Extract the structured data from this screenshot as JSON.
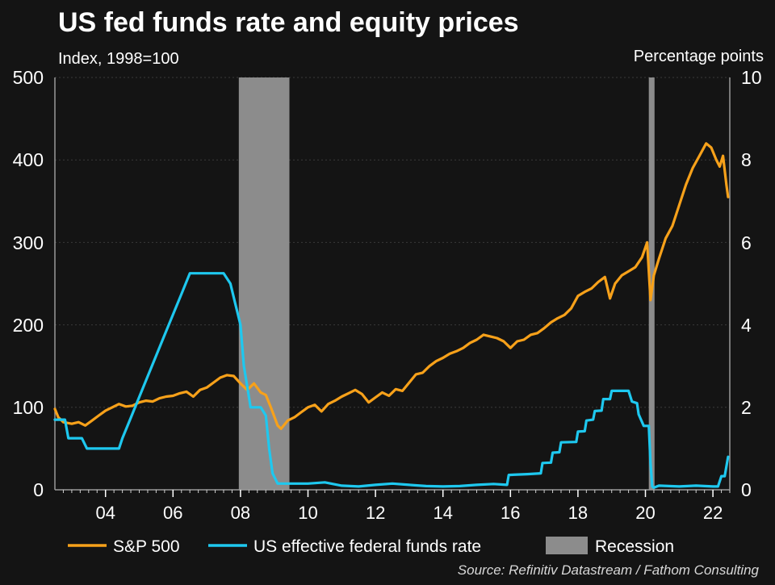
{
  "chart_data": {
    "type": "line",
    "title": "US fed funds rate and equity prices",
    "ylabel_left": "Index, 1998=100",
    "ylabel_right": "Percentage points",
    "ylim_left": [
      0,
      500
    ],
    "ylim_right": [
      0,
      10
    ],
    "xlim": [
      2002.5,
      2022.5
    ],
    "yticks_left": [
      "0",
      "100",
      "200",
      "300",
      "400",
      "500"
    ],
    "yticks_right": [
      "0",
      "2",
      "4",
      "6",
      "8",
      "10"
    ],
    "xticks": [
      {
        "label": "04",
        "value": 2004
      },
      {
        "label": "06",
        "value": 2006
      },
      {
        "label": "08",
        "value": 2008
      },
      {
        "label": "10",
        "value": 2010
      },
      {
        "label": "12",
        "value": 2012
      },
      {
        "label": "14",
        "value": 2014
      },
      {
        "label": "16",
        "value": 2016
      },
      {
        "label": "18",
        "value": 2018
      },
      {
        "label": "20",
        "value": 2020
      },
      {
        "label": "22",
        "value": 2022
      }
    ],
    "recessions": [
      {
        "start": 2007.95,
        "end": 2009.45
      },
      {
        "start": 2020.1,
        "end": 2020.27
      }
    ],
    "series": [
      {
        "name": "S&P 500",
        "axis": "left",
        "color": "#f7a11a",
        "x": [
          2002.5,
          2002.6,
          2002.75,
          2003.0,
          2003.2,
          2003.4,
          2003.6,
          2003.8,
          2004.0,
          2004.2,
          2004.4,
          2004.6,
          2004.8,
          2005.0,
          2005.2,
          2005.4,
          2005.6,
          2005.8,
          2006.0,
          2006.2,
          2006.4,
          2006.6,
          2006.8,
          2007.0,
          2007.2,
          2007.4,
          2007.6,
          2007.8,
          2008.0,
          2008.2,
          2008.4,
          2008.6,
          2008.75,
          2008.9,
          2009.1,
          2009.2,
          2009.4,
          2009.6,
          2009.8,
          2010.0,
          2010.2,
          2010.4,
          2010.6,
          2010.8,
          2011.0,
          2011.2,
          2011.4,
          2011.6,
          2011.8,
          2012.0,
          2012.2,
          2012.4,
          2012.6,
          2012.8,
          2013.0,
          2013.2,
          2013.4,
          2013.6,
          2013.8,
          2014.0,
          2014.2,
          2014.4,
          2014.6,
          2014.8,
          2015.0,
          2015.2,
          2015.4,
          2015.6,
          2015.8,
          2016.0,
          2016.2,
          2016.4,
          2016.6,
          2016.8,
          2017.0,
          2017.2,
          2017.4,
          2017.6,
          2017.8,
          2018.0,
          2018.2,
          2018.4,
          2018.6,
          2018.8,
          2018.95,
          2019.1,
          2019.3,
          2019.5,
          2019.7,
          2019.9,
          2020.05,
          2020.15,
          2020.25,
          2020.4,
          2020.6,
          2020.8,
          2021.0,
          2021.2,
          2021.4,
          2021.6,
          2021.8,
          2021.95,
          2022.1,
          2022.2,
          2022.3,
          2022.4,
          2022.45
        ],
        "values": [
          98,
          88,
          82,
          80,
          82,
          78,
          84,
          90,
          96,
          100,
          104,
          101,
          102,
          106,
          108,
          107,
          111,
          113,
          114,
          117,
          119,
          113,
          121,
          124,
          130,
          136,
          139,
          138,
          129,
          121,
          129,
          118,
          115,
          100,
          78,
          74,
          84,
          88,
          94,
          100,
          103,
          95,
          104,
          108,
          113,
          117,
          121,
          116,
          106,
          112,
          118,
          114,
          122,
          120,
          130,
          140,
          142,
          150,
          156,
          160,
          165,
          168,
          172,
          178,
          182,
          188,
          186,
          184,
          180,
          172,
          180,
          182,
          188,
          190,
          196,
          203,
          208,
          212,
          220,
          235,
          240,
          244,
          252,
          258,
          232,
          250,
          260,
          265,
          270,
          282,
          300,
          230,
          260,
          280,
          305,
          320,
          345,
          370,
          390,
          405,
          420,
          415,
          400,
          392,
          405,
          370,
          355
        ]
      },
      {
        "name": "US effective federal funds rate",
        "axis": "right",
        "color": "#1ec8ef",
        "x": [
          2002.5,
          2002.8,
          2002.9,
          2003.0,
          2003.3,
          2003.45,
          2003.5,
          2003.8,
          2004.0,
          2004.4,
          2004.5,
          2004.75,
          2005.0,
          2005.25,
          2005.5,
          2005.75,
          2006.0,
          2006.25,
          2006.5,
          2006.75,
          2007.0,
          2007.5,
          2007.7,
          2007.85,
          2008.0,
          2008.1,
          2008.2,
          2008.3,
          2008.45,
          2008.6,
          2008.75,
          2008.85,
          2008.95,
          2009.1,
          2009.3,
          2009.6,
          2010.0,
          2010.5,
          2011.0,
          2011.5,
          2012.0,
          2012.5,
          2013.0,
          2013.5,
          2014.0,
          2014.5,
          2015.0,
          2015.5,
          2015.9,
          2015.95,
          2016.5,
          2016.9,
          2016.95,
          2017.2,
          2017.25,
          2017.45,
          2017.5,
          2017.95,
          2018.0,
          2018.2,
          2018.25,
          2018.45,
          2018.5,
          2018.7,
          2018.75,
          2018.95,
          2019.0,
          2019.5,
          2019.6,
          2019.75,
          2019.8,
          2019.95,
          2020.1,
          2020.15,
          2020.2,
          2020.25,
          2020.4,
          2021.0,
          2021.5,
          2022.0,
          2022.15,
          2022.25,
          2022.35,
          2022.45
        ],
        "values": [
          1.7,
          1.7,
          1.25,
          1.25,
          1.25,
          1.0,
          1.0,
          1.0,
          1.0,
          1.0,
          1.25,
          1.75,
          2.25,
          2.75,
          3.25,
          3.75,
          4.25,
          4.75,
          5.25,
          5.25,
          5.25,
          5.25,
          5.0,
          4.5,
          4.0,
          3.0,
          2.5,
          2.0,
          2.0,
          2.0,
          1.8,
          1.0,
          0.4,
          0.15,
          0.15,
          0.15,
          0.15,
          0.18,
          0.1,
          0.08,
          0.12,
          0.15,
          0.12,
          0.09,
          0.08,
          0.09,
          0.12,
          0.14,
          0.12,
          0.36,
          0.38,
          0.4,
          0.65,
          0.66,
          0.9,
          0.91,
          1.15,
          1.16,
          1.41,
          1.42,
          1.68,
          1.7,
          1.91,
          1.92,
          2.2,
          2.2,
          2.4,
          2.4,
          2.14,
          2.1,
          1.83,
          1.55,
          1.55,
          0.65,
          0.08,
          0.05,
          0.1,
          0.08,
          0.1,
          0.08,
          0.08,
          0.33,
          0.33,
          0.8
        ]
      }
    ],
    "legend": [
      {
        "label": "S&P 500",
        "kind": "line",
        "color": "#f7a11a"
      },
      {
        "label": "US effective federal funds rate",
        "kind": "line",
        "color": "#1ec8ef"
      },
      {
        "label": "Recession",
        "kind": "box",
        "color": "#8c8c8c"
      }
    ],
    "source": "Source: Refinitiv Datastream / Fathom Consulting"
  }
}
